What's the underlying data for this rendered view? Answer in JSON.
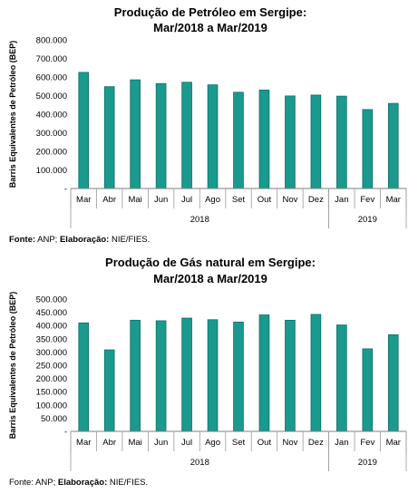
{
  "chart_data": [
    {
      "type": "bar",
      "title": "Produção de Petróleo em Sergipe:",
      "subtitle": "Mar/2018 a Mar/2019",
      "ylabel": "Barris Equivalentes de Petróleo (BEP)",
      "xlabel": "",
      "ylim": [
        0,
        800000
      ],
      "yticks": [
        "-",
        "100.000",
        "200.000",
        "300.000",
        "400.000",
        "500.000",
        "600.000",
        "700.000",
        "800.000"
      ],
      "categories": [
        "Mar",
        "Abr",
        "Mai",
        "Jun",
        "Jul",
        "Ago",
        "Set",
        "Out",
        "Nov",
        "Dez",
        "Jan",
        "Fev",
        "Mar"
      ],
      "year_groups": [
        {
          "label": "2018",
          "count": 10
        },
        {
          "label": "2019",
          "count": 3
        }
      ],
      "values": [
        625000,
        548000,
        585000,
        565000,
        572000,
        558000,
        518000,
        530000,
        498000,
        503000,
        497000,
        425000,
        458000
      ],
      "bar_color": "#1a9a8f",
      "grid": false,
      "source_bold": "Fonte:",
      "source_text1": " ANP; ",
      "source_bold2": "Elaboração:",
      "source_text2": " NIE/FIES."
    },
    {
      "type": "bar",
      "title": "Produção de Gás natural em Sergipe:",
      "subtitle": "Mar/2018 a Mar/2019",
      "ylabel": "Barris Equivalentes de Petróleo (BEP)",
      "xlabel": "",
      "ylim": [
        0,
        500000
      ],
      "yticks": [
        "-",
        "50.000",
        "100.000",
        "150.000",
        "200.000",
        "250.000",
        "300.000",
        "350.000",
        "400.000",
        "450.000",
        "500.000"
      ],
      "categories": [
        "Mar",
        "Abr",
        "Mai",
        "Jun",
        "Jul",
        "Ago",
        "Set",
        "Out",
        "Nov",
        "Dez",
        "Jan",
        "Fev",
        "Mar"
      ],
      "year_groups": [
        {
          "label": "2018",
          "count": 10
        },
        {
          "label": "2019",
          "count": 3
        }
      ],
      "values": [
        410000,
        308000,
        420000,
        418000,
        428000,
        422000,
        413000,
        440000,
        420000,
        442000,
        402000,
        312000,
        365000
      ],
      "bar_color": "#1a9a8f",
      "grid": false,
      "source_bold": "Fonte:",
      "source_text1": " ANP; ",
      "source_bold2": "Elaboração:",
      "source_text2": " NIE/FIES."
    }
  ]
}
